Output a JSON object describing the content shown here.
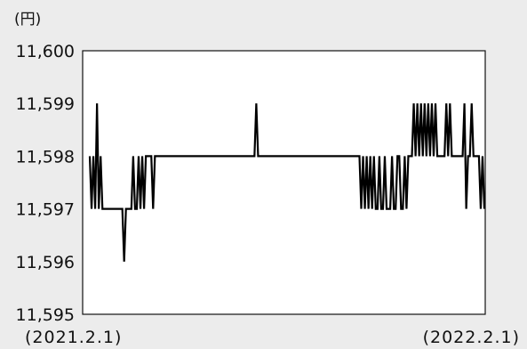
{
  "chart_data": {
    "type": "line",
    "ylabel": "(円)",
    "ylim": [
      11595,
      11600
    ],
    "yticks": [
      "11,600",
      "11,599",
      "11,598",
      "11,597",
      "11,596",
      "11,595"
    ],
    "yticks_values": [
      11600,
      11599,
      11598,
      11597,
      11596,
      11595
    ],
    "x_range_labels": [
      "(2021.2.1)",
      "(2022.2.1)"
    ],
    "grid": false,
    "series": [
      {
        "values": [
          11598,
          11597,
          11598,
          11597,
          11599,
          11597,
          11598,
          11597,
          11597,
          11597,
          11597,
          11597,
          11597,
          11597,
          11597,
          11597,
          11597,
          11597,
          11597,
          11596,
          11597,
          11597,
          11597,
          11597,
          11598,
          11597,
          11597,
          11598,
          11597,
          11598,
          11597,
          11598,
          11598,
          11598,
          11598,
          11597,
          11598,
          11598,
          11598,
          11598,
          11598,
          11598,
          11598,
          11598,
          11598,
          11598,
          11598,
          11598,
          11598,
          11598,
          11598,
          11598,
          11598,
          11598,
          11598,
          11598,
          11598,
          11598,
          11598,
          11598,
          11598,
          11598,
          11598,
          11598,
          11598,
          11598,
          11598,
          11598,
          11598,
          11598,
          11598,
          11598,
          11598,
          11598,
          11598,
          11598,
          11598,
          11598,
          11598,
          11598,
          11598,
          11598,
          11598,
          11598,
          11598,
          11598,
          11598,
          11598,
          11598,
          11598,
          11598,
          11598,
          11599,
          11598,
          11598,
          11598,
          11598,
          11598,
          11598,
          11598,
          11598,
          11598,
          11598,
          11598,
          11598,
          11598,
          11598,
          11598,
          11598,
          11598,
          11598,
          11598,
          11598,
          11598,
          11598,
          11598,
          11598,
          11598,
          11598,
          11598,
          11598,
          11598,
          11598,
          11598,
          11598,
          11598,
          11598,
          11598,
          11598,
          11598,
          11598,
          11598,
          11598,
          11598,
          11598,
          11598,
          11598,
          11598,
          11598,
          11598,
          11598,
          11598,
          11598,
          11598,
          11598,
          11598,
          11598,
          11598,
          11598,
          11598,
          11597,
          11598,
          11597,
          11598,
          11597,
          11598,
          11597,
          11598,
          11597,
          11597,
          11598,
          11597,
          11597,
          11598,
          11597,
          11597,
          11597,
          11598,
          11597,
          11597,
          11598,
          11598,
          11597,
          11597,
          11598,
          11597,
          11598,
          11598,
          11598,
          11599,
          11598,
          11599,
          11598,
          11599,
          11598,
          11599,
          11598,
          11599,
          11598,
          11599,
          11598,
          11599,
          11598,
          11598,
          11598,
          11598,
          11598,
          11599,
          11598,
          11599,
          11598,
          11598,
          11598,
          11598,
          11598,
          11598,
          11598,
          11599,
          11597,
          11598,
          11598,
          11599,
          11598,
          11598,
          11598,
          11598,
          11597,
          11598,
          11597
        ]
      }
    ]
  }
}
